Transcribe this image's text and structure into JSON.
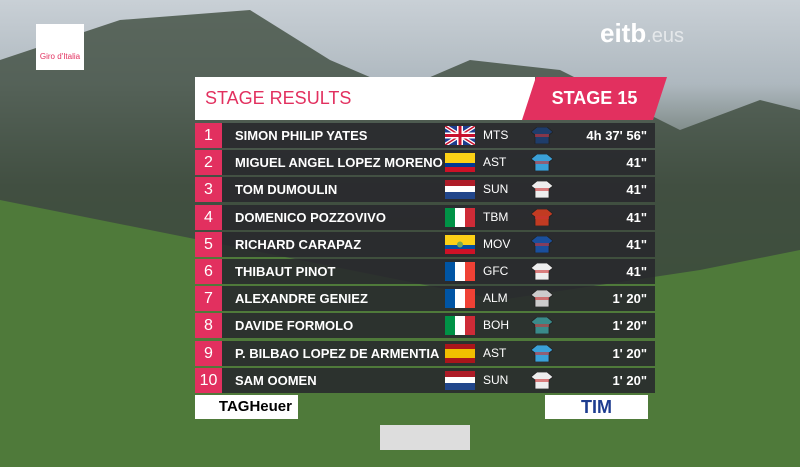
{
  "logos": {
    "race": "Giro d'Italia",
    "broadcaster": "eitb",
    "broadcaster_suffix": ".eus",
    "sponsor_left": "TAGHeuer",
    "sponsor_right": "TIM"
  },
  "header": {
    "title": "STAGE RESULTS",
    "stage": "STAGE 15"
  },
  "table": {
    "rows": [
      [
        "1",
        "SIMON PHILIP YATES",
        "MTS",
        "4h 37' 56\""
      ],
      [
        "2",
        "MIGUEL ANGEL LOPEZ MORENO",
        "AST",
        "41\""
      ],
      [
        "3",
        "TOM DUMOULIN",
        "SUN",
        "41\""
      ],
      [
        "4",
        "DOMENICO POZZOVIVO",
        "TBM",
        "41\""
      ],
      [
        "5",
        "RICHARD CARAPAZ",
        "MOV",
        "41\""
      ],
      [
        "6",
        "THIBAUT PINOT",
        "GFC",
        "41\""
      ],
      [
        "7",
        "ALEXANDRE GENIEZ",
        "ALM",
        "1' 20\""
      ],
      [
        "8",
        "DAVIDE FORMOLO",
        "BOH",
        "1' 20\""
      ],
      [
        "9",
        "P. BILBAO LOPEZ DE ARMENTIA",
        "AST",
        "1' 20\""
      ],
      [
        "10",
        "SAM OOMEN",
        "SUN",
        "1' 20\""
      ]
    ]
  }
}
